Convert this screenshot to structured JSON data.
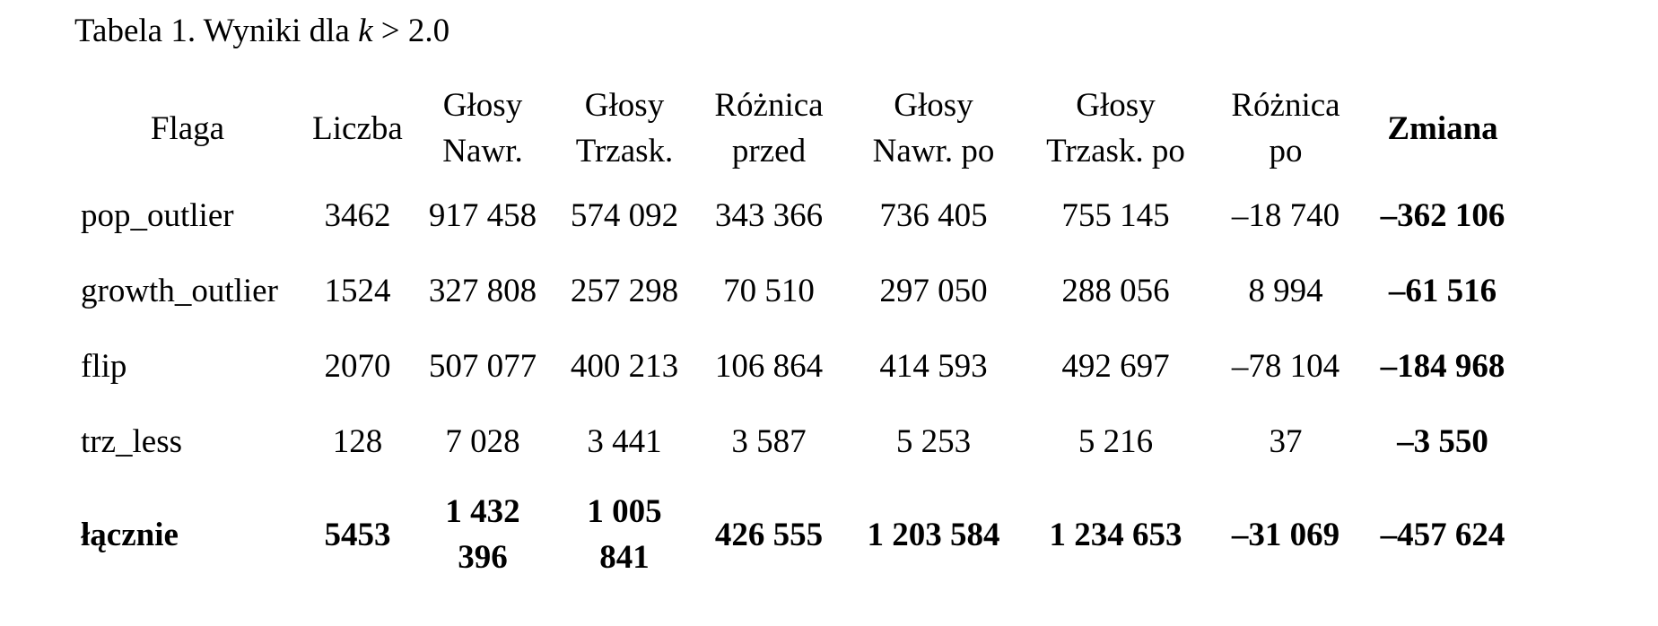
{
  "caption": {
    "prefix": "Tabela 1. Wyniki dla ",
    "variable": "k",
    "suffix": " > 2.0"
  },
  "table": {
    "headers": [
      [
        "Flaga"
      ],
      [
        "Liczba"
      ],
      [
        "Głosy",
        "Nawr."
      ],
      [
        "Głosy",
        "Trzask."
      ],
      [
        "Różnica",
        "przed"
      ],
      [
        "Głosy",
        "Nawr. po"
      ],
      [
        "Głosy",
        "Trzask. po"
      ],
      [
        "Różnica",
        "po"
      ],
      [
        "Zmiana"
      ]
    ],
    "rows": [
      [
        "pop_outlier",
        "3462",
        "917 458",
        "574 092",
        "343 366",
        "736 405",
        "755 145",
        "–18 740",
        "–362 106"
      ],
      [
        "growth_outlier",
        "1524",
        "327 808",
        "257 298",
        "70 510",
        "297 050",
        "288 056",
        "8 994",
        "–61 516"
      ],
      [
        "flip",
        "2070",
        "507 077",
        "400 213",
        "106 864",
        "414 593",
        "492 697",
        "–78 104",
        "–184 968"
      ],
      [
        "trz_less",
        "128",
        "7 028",
        "3 441",
        "3 587",
        "5 253",
        "5 216",
        "37",
        "–3 550"
      ]
    ],
    "total": {
      "label": "łącznie",
      "count": "5453",
      "votes_nawr": [
        "1 432",
        "396"
      ],
      "votes_trzask": [
        "1 005",
        "841"
      ],
      "diff_before": "426 555",
      "votes_nawr_after": "1 203 584",
      "votes_trzask_after": "1 234 653",
      "diff_after": "–31 069",
      "change": "–457 624"
    }
  }
}
